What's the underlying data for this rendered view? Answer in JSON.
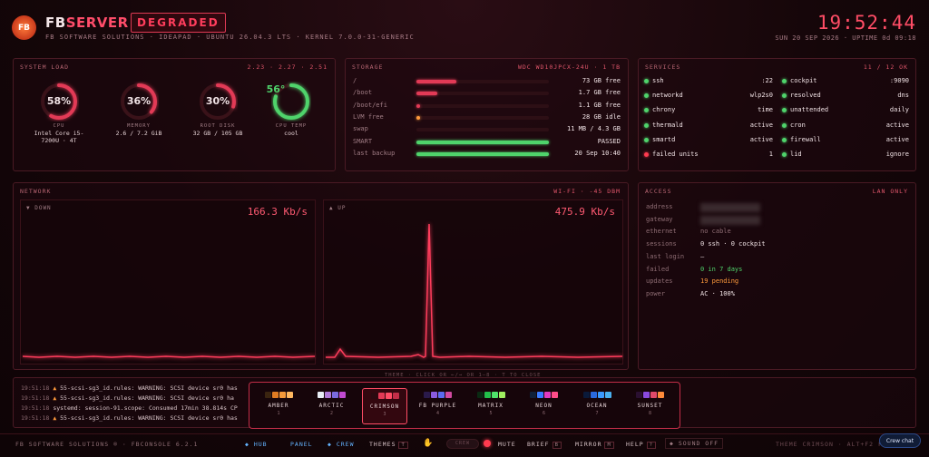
{
  "header": {
    "logo": "FB",
    "brand_fb": "FB",
    "brand_server": "SERVER",
    "status_badge": "DEGRADED",
    "subtitle": "FB SOFTWARE SOLUTIONS · IDEAPAD · UBUNTU 26.04.3 LTS · KERNEL 7.0.0-31-GENERIC",
    "clock": "19:52:44",
    "date_uptime": "SUN 20 SEP 2026 · UPTIME 0d 09:18"
  },
  "system_load": {
    "title": "SYSTEM LOAD",
    "load_avg": "2.23 · 2.27 · 2.51",
    "gauges": [
      {
        "value": "58%",
        "fraction": 0.58,
        "label": "CPU",
        "sub": "Intel Core i5-7200U · 4T",
        "color": "#e23a56"
      },
      {
        "value": "36%",
        "fraction": 0.36,
        "label": "MEMORY",
        "sub": "2.6 / 7.2 GiB",
        "color": "#e23a56"
      },
      {
        "value": "30%",
        "fraction": 0.3,
        "label": "ROOT DISK",
        "sub": "32 GB / 105 GB",
        "color": "#e23a56"
      },
      {
        "value": "56°",
        "fraction": 0.8,
        "label": "CPU TEMP",
        "sub": "cool",
        "color": "#4fd36b"
      }
    ]
  },
  "storage": {
    "title": "STORAGE",
    "device": "WDC WD10JPCX-24U · 1 TB",
    "rows": [
      {
        "label": "/",
        "value": "73 GB free",
        "fill": 0.3,
        "color": "#e23a56"
      },
      {
        "label": "/boot",
        "value": "1.7 GB free",
        "fill": 0.16,
        "color": "#e23a56"
      },
      {
        "label": "/boot/efi",
        "value": "1.1 GB free",
        "fill": 0.01,
        "color": "#e23a56"
      },
      {
        "label": "LVM free",
        "value": "28 GB idle",
        "fill": 0.02,
        "color": "#ff9a3c"
      },
      {
        "label": "swap",
        "value": "11 MB / 4.3 GB",
        "fill": 0.0,
        "color": "#e23a56"
      },
      {
        "label": "SMART",
        "value": "PASSED",
        "fill": 1.0,
        "color": "#4fd36b"
      },
      {
        "label": "last backup",
        "value": "20 Sep 10:40",
        "fill": 1.0,
        "color": "#4fd36b"
      }
    ]
  },
  "services": {
    "title": "SERVICES",
    "count": "11 / 12 OK",
    "left": [
      {
        "name": "ssh",
        "value": ":22",
        "ok": true
      },
      {
        "name": "networkd",
        "value": "wlp2s0",
        "ok": true
      },
      {
        "name": "chrony",
        "value": "time",
        "ok": true
      },
      {
        "name": "thermald",
        "value": "active",
        "ok": true
      },
      {
        "name": "smartd",
        "value": "active",
        "ok": true
      },
      {
        "name": "failed units",
        "value": "1",
        "ok": false
      }
    ],
    "right": [
      {
        "name": "cockpit",
        "value": ":9090",
        "ok": true
      },
      {
        "name": "resolved",
        "value": "dns",
        "ok": true
      },
      {
        "name": "unattended",
        "value": "daily",
        "ok": true
      },
      {
        "name": "cron",
        "value": "active",
        "ok": true
      },
      {
        "name": "firewall",
        "value": "active",
        "ok": true
      },
      {
        "name": "lid",
        "value": "ignore",
        "ok": true
      }
    ]
  },
  "network": {
    "title": "NETWORK",
    "link": "WI-FI · -45 DBM",
    "down_label": "▼ DOWN",
    "down_rate": "166.3 Kb/s",
    "up_label": "▲ UP",
    "up_rate": "475.9 Kb/s"
  },
  "access": {
    "title": "ACCESS",
    "scope": "LAN ONLY",
    "rows": [
      {
        "key": "address",
        "value": "",
        "blurred": true,
        "color": "#f1e3e6"
      },
      {
        "key": "gateway",
        "value": "",
        "blurred": true,
        "color": "#f1e3e6"
      },
      {
        "key": "ethernet",
        "value": "no cable",
        "color": "#8f6d74"
      },
      {
        "key": "sessions",
        "value": "0 ssh · 0 cockpit",
        "color": "#f1e3e6"
      },
      {
        "key": "last login",
        "value": "—",
        "color": "#f1e3e6"
      },
      {
        "key": "failed",
        "value": "0 in 7 days",
        "color": "#4fd36b"
      },
      {
        "key": "updates",
        "value": "19 pending",
        "color": "#ff9a3c"
      },
      {
        "key": "power",
        "value": "AC · 100%",
        "color": "#f1e3e6"
      }
    ]
  },
  "log": {
    "hint": "THEME · CLICK OR ←/→ OR 1–8 · T TO CLOSE",
    "lines": [
      {
        "ts": "19:51:18",
        "warn": true,
        "text": "55-scsi-sg3_id.rules: WARNING: SCSI device sr0 has"
      },
      {
        "ts": "19:51:18",
        "warn": true,
        "text": "55-scsi-sg3_id.rules: WARNING: SCSI device sr0 ha"
      },
      {
        "ts": "19:51:18",
        "warn": false,
        "text": "systemd: session-91.scope: Consumed 17min 38.814s CP"
      },
      {
        "ts": "19:51:18",
        "warn": true,
        "text": "55-scsi-sg3_id.rules: WARNING: SCSI device sr0 has"
      }
    ]
  },
  "themes": [
    {
      "name": "AMBER",
      "key": "1",
      "colors": [
        "#3a2410",
        "#e07b22",
        "#f59a3a",
        "#ffb860"
      ]
    },
    {
      "name": "ARCTIC",
      "key": "2",
      "colors": [
        "#e8eef5",
        "#b07ad8",
        "#7a6bdf",
        "#c04ad0"
      ]
    },
    {
      "name": "CRIMSON",
      "key": "3",
      "colors": [
        "#2a0a10",
        "#e23a56",
        "#ff4d66",
        "#c22e48"
      ]
    },
    {
      "name": "FB PURPLE",
      "key": "4",
      "colors": [
        "#2a1a4a",
        "#8a5bdf",
        "#5b6bef",
        "#d04aa0"
      ]
    },
    {
      "name": "MATRIX",
      "key": "5",
      "colors": [
        "#0a2a12",
        "#22c04a",
        "#4fe36b",
        "#a0ef60"
      ]
    },
    {
      "name": "NEON",
      "key": "6",
      "colors": [
        "#10203a",
        "#3a7aff",
        "#e03ac0",
        "#ff4d8a"
      ]
    },
    {
      "name": "OCEAN",
      "key": "7",
      "colors": [
        "#0a1a3a",
        "#2a6adf",
        "#3a9aff",
        "#4ab0ef"
      ]
    },
    {
      "name": "SUNSET",
      "key": "8",
      "colors": [
        "#2a1030",
        "#8a4adf",
        "#e04a6a",
        "#ff8a3a"
      ]
    }
  ],
  "footer": {
    "left": "FB SOFTWARE SOLUTIONS ® · FBCONSOLE 6.2.1",
    "hub": "◆ HUB",
    "panel": "PANEL",
    "crew": "◆ CREW",
    "themes": "THEMES",
    "themes_key": "T",
    "crew_toggle": "CREW",
    "mute": "MUTE",
    "brief": "BRIEF",
    "brief_key": "B",
    "mirror": "MIRROR",
    "mirror_key": "M",
    "help": "HELP",
    "help_key": "?",
    "sound": "◆ SOUND OFF",
    "right": "THEME CRIMSON · ALT+F2 F",
    "chat": "Crew chat"
  }
}
